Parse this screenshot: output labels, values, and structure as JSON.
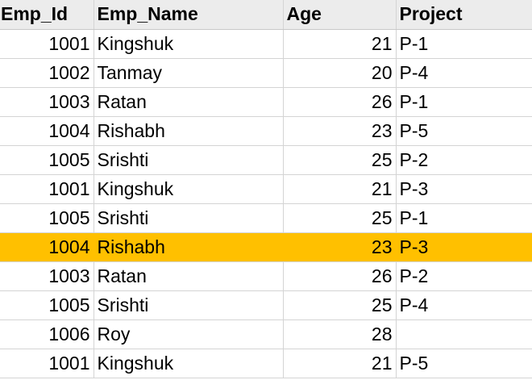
{
  "sheet": {
    "highlight_color": "#ffc000",
    "columns": [
      "Emp_Id",
      "Emp_Name",
      "Age",
      "Project"
    ],
    "rows": [
      {
        "emp_id": "1001",
        "emp_name": "Kingshuk",
        "age": "21",
        "project": "P-1",
        "highlighted": false
      },
      {
        "emp_id": "1002",
        "emp_name": "Tanmay",
        "age": "20",
        "project": "P-4",
        "highlighted": false
      },
      {
        "emp_id": "1003",
        "emp_name": "Ratan",
        "age": "26",
        "project": "P-1",
        "highlighted": false
      },
      {
        "emp_id": "1004",
        "emp_name": "Rishabh",
        "age": "23",
        "project": "P-5",
        "highlighted": false
      },
      {
        "emp_id": "1005",
        "emp_name": "Srishti",
        "age": "25",
        "project": "P-2",
        "highlighted": false
      },
      {
        "emp_id": "1001",
        "emp_name": "Kingshuk",
        "age": "21",
        "project": "P-3",
        "highlighted": false
      },
      {
        "emp_id": "1005",
        "emp_name": "Srishti",
        "age": "25",
        "project": "P-1",
        "highlighted": false
      },
      {
        "emp_id": "1004",
        "emp_name": "Rishabh",
        "age": "23",
        "project": "P-3",
        "highlighted": true
      },
      {
        "emp_id": "1003",
        "emp_name": "Ratan",
        "age": "26",
        "project": "P-2",
        "highlighted": false
      },
      {
        "emp_id": "1005",
        "emp_name": "Srishti",
        "age": "25",
        "project": "P-4",
        "highlighted": false
      },
      {
        "emp_id": "1006",
        "emp_name": "Roy",
        "age": "28",
        "project": "",
        "highlighted": false
      },
      {
        "emp_id": "1001",
        "emp_name": "Kingshuk",
        "age": "21",
        "project": "P-5",
        "highlighted": false
      }
    ]
  }
}
